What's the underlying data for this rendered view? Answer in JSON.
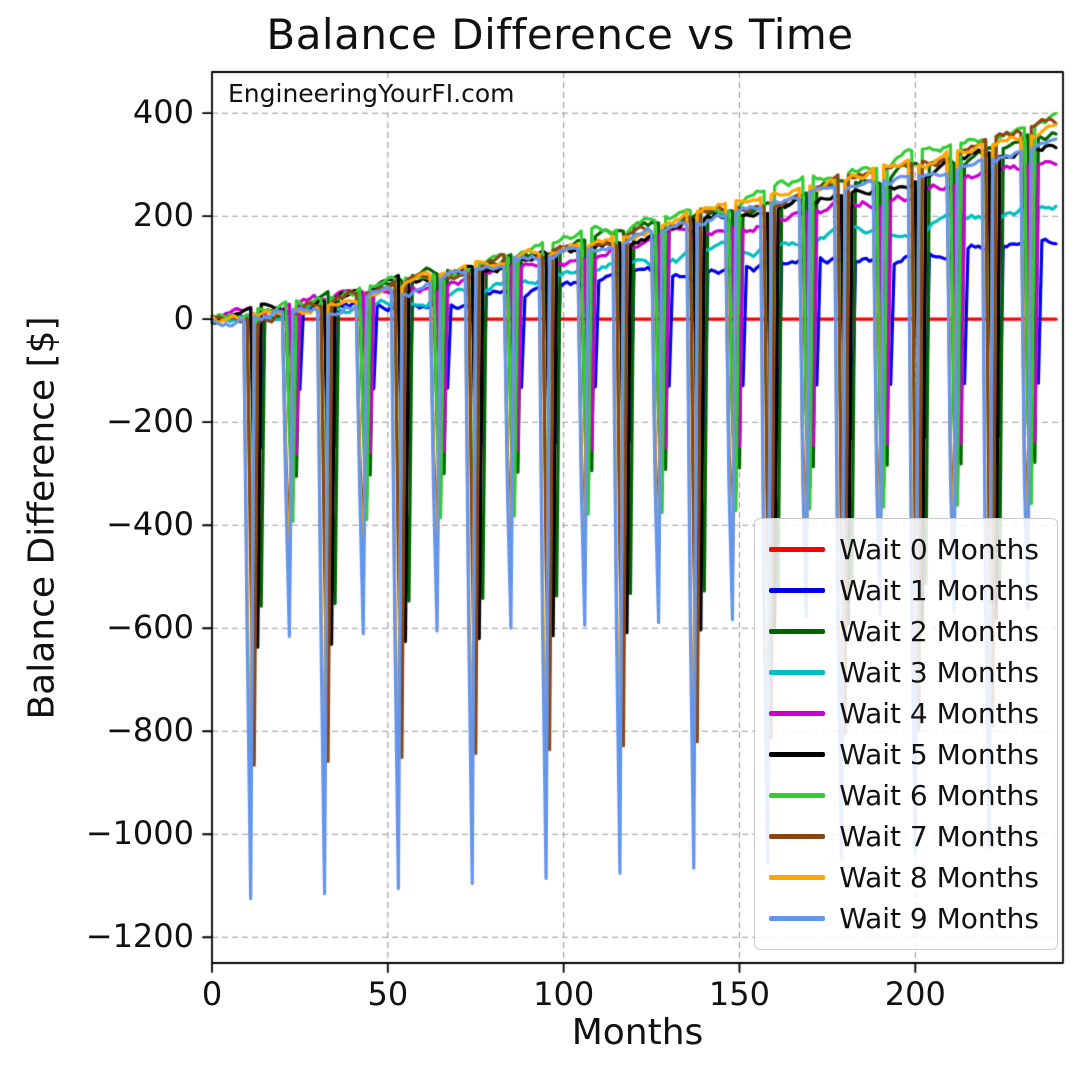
{
  "chart_data": {
    "type": "line",
    "title": "Balance Difference vs Time",
    "xlabel": "Months",
    "ylabel": "Balance Difference [$]",
    "watermark": "EngineeringYourFI.com",
    "grid": true,
    "legend_position": "lower right",
    "xlim": [
      0,
      242
    ],
    "ylim": [
      -1250,
      480
    ],
    "xticks": [
      0,
      50,
      100,
      150,
      200
    ],
    "xtick_labels": [
      "0",
      "50",
      "100",
      "150",
      "200"
    ],
    "yticks": [
      400,
      200,
      0,
      -200,
      -400,
      -600,
      -800,
      -1000,
      -1200
    ],
    "ytick_labels": [
      "400",
      "200",
      "0",
      "−200",
      "−400",
      "−600",
      "−800",
      "−1000",
      "−1200"
    ],
    "x_months": 240,
    "pattern_note": "Each series drifts slowly upward from 0 with periodic sharp negative spikes roughly every 10-11 months; deeper spikes for longer wait times, deep/medium clusters alternating, starting near month 10.",
    "series": [
      {
        "name": "Wait 0 Months",
        "color": "#ff0000",
        "wait": 0,
        "end_value": 0,
        "spike_depth": 0,
        "first_spike": 0,
        "spike_period": 10.5,
        "alt_depth_factor": 0.55
      },
      {
        "name": "Wait 1 Months",
        "color": "#0000ee",
        "wait": 1,
        "end_value": 150,
        "spike_depth": 250,
        "first_spike": 13.2,
        "spike_period": 10.5,
        "alt_depth_factor": 0.55
      },
      {
        "name": "Wait 2 Months",
        "color": "#006400",
        "wait": 2,
        "end_value": 360,
        "spike_depth": 560,
        "first_spike": 12.8,
        "spike_period": 10.5,
        "alt_depth_factor": 0.55
      },
      {
        "name": "Wait 3 Months",
        "color": "#00bfbf",
        "wait": 3,
        "end_value": 220,
        "spike_depth": 380,
        "first_spike": 12.4,
        "spike_period": 10.5,
        "alt_depth_factor": 0.55
      },
      {
        "name": "Wait 4 Months",
        "color": "#cc00cc",
        "wait": 4,
        "end_value": 300,
        "spike_depth": 480,
        "first_spike": 12.0,
        "spike_period": 10.5,
        "alt_depth_factor": 0.55
      },
      {
        "name": "Wait 5 Months",
        "color": "#000000",
        "wait": 5,
        "end_value": 340,
        "spike_depth": 640,
        "first_spike": 11.6,
        "spike_period": 10.5,
        "alt_depth_factor": 0.55
      },
      {
        "name": "Wait 6 Months",
        "color": "#33cc33",
        "wait": 6,
        "end_value": 390,
        "spike_depth": 720,
        "first_spike": 11.2,
        "spike_period": 10.5,
        "alt_depth_factor": 0.55
      },
      {
        "name": "Wait 7 Months",
        "color": "#8b4513",
        "wait": 7,
        "end_value": 370,
        "spike_depth": 870,
        "first_spike": 10.8,
        "spike_period": 10.5,
        "alt_depth_factor": 0.55
      },
      {
        "name": "Wait 8 Months",
        "color": "#ffa500",
        "wait": 8,
        "end_value": 375,
        "spike_depth": 980,
        "first_spike": 10.4,
        "spike_period": 10.5,
        "alt_depth_factor": 0.55
      },
      {
        "name": "Wait 9 Months",
        "color": "#6495ed",
        "wait": 9,
        "end_value": 335,
        "spike_depth": 1130,
        "first_spike": 10.0,
        "spike_period": 10.5,
        "alt_depth_factor": 0.55
      }
    ]
  }
}
